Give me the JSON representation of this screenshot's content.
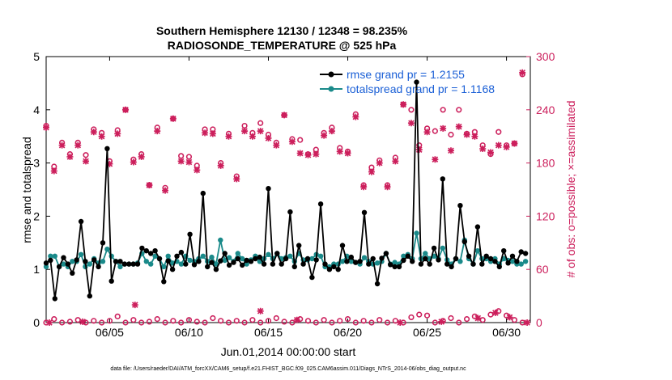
{
  "chart_data": {
    "type": "line",
    "title_line1": "Southern Hemisphere 12130 / 12348 = 98.235%",
    "title_line2": "RADIOSONDE_TEMPERATURE @ 525 hPa",
    "ylabel_left": "rmse and totalspread",
    "ylabel_right": "# of obs: o=possible; ×=assimilated",
    "xlabel": "Jun.01,2014 00:00:00 start",
    "footer": "data file: /Users/raeder/DAI/ATM_forcXX/CAM6_setup/f.e21.FHIST_BGC.f09_025.CAM6assim.011/Diags_NTrS_2014-06/obs_diag_output.nc",
    "xlim": [
      1,
      31.5
    ],
    "ylim_left": [
      0,
      5
    ],
    "ylim_right": [
      0,
      300
    ],
    "yticks_left": [
      0,
      1,
      2,
      3,
      4,
      5
    ],
    "yticks_right": [
      0,
      60,
      120,
      180,
      240,
      300
    ],
    "xticks": [
      {
        "day": 5,
        "label": "06/05"
      },
      {
        "day": 10,
        "label": "06/10"
      },
      {
        "day": 15,
        "label": "06/15"
      },
      {
        "day": 20,
        "label": "06/20"
      },
      {
        "day": 25,
        "label": "06/25"
      },
      {
        "day": 30,
        "label": "06/30"
      }
    ],
    "legend": [
      {
        "name": "rmse grand pr = 1.2155",
        "color": "#000000"
      },
      {
        "name": "totalspread grand pr = 1.1168",
        "color": "#1a8a8a"
      }
    ],
    "colors": {
      "rmse": "#000000",
      "spread": "#1a8a8a",
      "obs": "#cc1f5c",
      "label_left": "#000000",
      "label_right": "#cc1f5c",
      "legend_text": "#1a5fd6"
    },
    "series": [
      {
        "name": "rmse",
        "values": [
          1.12,
          1.17,
          0.45,
          1.05,
          1.22,
          1.1,
          0.93,
          1.18,
          1.9,
          1.15,
          0.5,
          1.18,
          1.05,
          1.5,
          3.27,
          0.78,
          1.15,
          1.15,
          1.1,
          1.1,
          1.1,
          1.1,
          1.4,
          1.35,
          1.3,
          1.35,
          1.2,
          0.77,
          1.16,
          1.0,
          1.25,
          1.32,
          1.1,
          1.66,
          1.09,
          1.15,
          2.43,
          1.05,
          1.13,
          1.0,
          1.16,
          1.3,
          1.08,
          1.13,
          1.2,
          1.08,
          1.17,
          1.15,
          1.2,
          1.23,
          1.1,
          2.52,
          1.1,
          1.3,
          1.1,
          1.2,
          2.08,
          1.05,
          1.45,
          1.1,
          1.2,
          0.85,
          1.18,
          2.23,
          1.1,
          1.0,
          1.05,
          1.0,
          1.45,
          1.15,
          1.23,
          1.13,
          1.15,
          2.07,
          1.1,
          1.2,
          0.73,
          1.21,
          1.3,
          1.09,
          1.05,
          1.05,
          1.17,
          1.25,
          1.15,
          4.52,
          1.1,
          1.2,
          1.1,
          1.4,
          1.18,
          2.7,
          1.1,
          1.05,
          1.2,
          2.2,
          1.52,
          1.25,
          1.1,
          1.8,
          1.1,
          1.25,
          1.2,
          1.15,
          1.05,
          1.35,
          1.12,
          1.25,
          1.15,
          1.33,
          1.3
        ],
        "spread": [
          1.05,
          1.25,
          1.25,
          1.05,
          1.1,
          1.05,
          1.15,
          1.15,
          1.28,
          1.05,
          1.1,
          1.2,
          1.12,
          1.15,
          1.38,
          1.25,
          1.15,
          1.05,
          1.1,
          1.1,
          1.1,
          1.12,
          1.3,
          1.15,
          1.1,
          1.25,
          1.2,
          1.05,
          1.25,
          1.12,
          1.15,
          1.1,
          1.25,
          1.17,
          1.15,
          1.2,
          1.25,
          1.15,
          1.23,
          1.1,
          1.55,
          1.17,
          1.22,
          1.15,
          1.3,
          1.2,
          1.1,
          1.18,
          1.25,
          1.15,
          1.2,
          1.28,
          1.2,
          1.3,
          1.2,
          1.22,
          1.25,
          1.15,
          1.3,
          1.18,
          1.18,
          1.2,
          1.28,
          1.25,
          1.05,
          1.05,
          1.1,
          1.1,
          1.15,
          1.25,
          1.15,
          1.13,
          1.1,
          1.22,
          1.15,
          1.1,
          1.12,
          1.15,
          1.3,
          1.1,
          1.13,
          1.1,
          1.25,
          1.28,
          1.2,
          1.68,
          1.2,
          1.3,
          1.2,
          1.25,
          1.2,
          1.4,
          1.18,
          1.1,
          1.2,
          1.15,
          1.55,
          1.2,
          1.1,
          1.35,
          1.2,
          1.2,
          1.15,
          1.2,
          1.1,
          1.2,
          1.17,
          1.15,
          1.1,
          1.1,
          1.15
        ]
      }
    ],
    "obs_possible": [
      {
        "day": 1.0,
        "n": 222
      },
      {
        "day": 1.5,
        "n": 176
      },
      {
        "day": 2.0,
        "n": 203
      },
      {
        "day": 2.5,
        "n": 190
      },
      {
        "day": 3.0,
        "n": 203
      },
      {
        "day": 3.5,
        "n": 189
      },
      {
        "day": 4.0,
        "n": 218
      },
      {
        "day": 4.5,
        "n": 214
      },
      {
        "day": 5.0,
        "n": 182
      },
      {
        "day": 5.5,
        "n": 217
      },
      {
        "day": 6.0,
        "n": 240
      },
      {
        "day": 6.5,
        "n": 184
      },
      {
        "day": 7.0,
        "n": 190
      },
      {
        "day": 7.5,
        "n": 155
      },
      {
        "day": 8.0,
        "n": 220
      },
      {
        "day": 8.5,
        "n": 152
      },
      {
        "day": 9.0,
        "n": 230
      },
      {
        "day": 9.5,
        "n": 188
      },
      {
        "day": 10.0,
        "n": 187
      },
      {
        "day": 10.5,
        "n": 177
      },
      {
        "day": 11.0,
        "n": 218
      },
      {
        "day": 11.5,
        "n": 218
      },
      {
        "day": 12.0,
        "n": 180
      },
      {
        "day": 12.5,
        "n": 213
      },
      {
        "day": 13.0,
        "n": 165
      },
      {
        "day": 13.5,
        "n": 222
      },
      {
        "day": 14.0,
        "n": 214
      },
      {
        "day": 14.5,
        "n": 225
      },
      {
        "day": 15.0,
        "n": 212
      },
      {
        "day": 15.5,
        "n": 203
      },
      {
        "day": 16.0,
        "n": 234
      },
      {
        "day": 16.5,
        "n": 207
      },
      {
        "day": 17.0,
        "n": 206
      },
      {
        "day": 17.5,
        "n": 190
      },
      {
        "day": 18.0,
        "n": 195
      },
      {
        "day": 18.5,
        "n": 214
      },
      {
        "day": 19.0,
        "n": 220
      },
      {
        "day": 19.5,
        "n": 197
      },
      {
        "day": 20.0,
        "n": 193
      },
      {
        "day": 20.5,
        "n": 235
      },
      {
        "day": 21.0,
        "n": 155
      },
      {
        "day": 21.5,
        "n": 175
      },
      {
        "day": 22.0,
        "n": 183
      },
      {
        "day": 22.5,
        "n": 155
      },
      {
        "day": 23.0,
        "n": 186
      },
      {
        "day": 23.5,
        "n": 246
      },
      {
        "day": 24.0,
        "n": 240
      },
      {
        "day": 24.5,
        "n": 200
      },
      {
        "day": 25.0,
        "n": 219
      },
      {
        "day": 25.5,
        "n": 216
      },
      {
        "day": 26.0,
        "n": 240
      },
      {
        "day": 26.5,
        "n": 212
      },
      {
        "day": 27.0,
        "n": 240
      },
      {
        "day": 27.5,
        "n": 213
      },
      {
        "day": 28.0,
        "n": 215
      },
      {
        "day": 28.5,
        "n": 200
      },
      {
        "day": 29.0,
        "n": 190
      },
      {
        "day": 29.5,
        "n": 215
      },
      {
        "day": 30.0,
        "n": 200
      },
      {
        "day": 30.5,
        "n": 202
      },
      {
        "day": 31.0,
        "n": 280
      }
    ],
    "obs_assimilated": [
      {
        "day": 1.0,
        "n": 220
      },
      {
        "day": 1.5,
        "n": 171
      },
      {
        "day": 2.0,
        "n": 200
      },
      {
        "day": 2.5,
        "n": 187
      },
      {
        "day": 3.0,
        "n": 200
      },
      {
        "day": 3.5,
        "n": 182
      },
      {
        "day": 4.0,
        "n": 215
      },
      {
        "day": 4.5,
        "n": 210
      },
      {
        "day": 5.0,
        "n": 179
      },
      {
        "day": 5.5,
        "n": 213
      },
      {
        "day": 6.0,
        "n": 240
      },
      {
        "day": 6.5,
        "n": 181
      },
      {
        "day": 7.0,
        "n": 187
      },
      {
        "day": 7.5,
        "n": 155
      },
      {
        "day": 8.0,
        "n": 216
      },
      {
        "day": 8.5,
        "n": 149
      },
      {
        "day": 9.0,
        "n": 230
      },
      {
        "day": 9.5,
        "n": 182
      },
      {
        "day": 10.0,
        "n": 181
      },
      {
        "day": 10.5,
        "n": 172
      },
      {
        "day": 11.0,
        "n": 214
      },
      {
        "day": 11.5,
        "n": 213
      },
      {
        "day": 12.0,
        "n": 177
      },
      {
        "day": 12.5,
        "n": 210
      },
      {
        "day": 13.0,
        "n": 162
      },
      {
        "day": 13.5,
        "n": 216
      },
      {
        "day": 14.0,
        "n": 210
      },
      {
        "day": 14.5,
        "n": 216
      },
      {
        "day": 15.0,
        "n": 208
      },
      {
        "day": 15.5,
        "n": 200
      },
      {
        "day": 16.0,
        "n": 234
      },
      {
        "day": 16.5,
        "n": 204
      },
      {
        "day": 17.0,
        "n": 191
      },
      {
        "day": 17.5,
        "n": 189
      },
      {
        "day": 18.0,
        "n": 190
      },
      {
        "day": 18.5,
        "n": 211
      },
      {
        "day": 19.0,
        "n": 216
      },
      {
        "day": 19.5,
        "n": 193
      },
      {
        "day": 20.0,
        "n": 191
      },
      {
        "day": 20.5,
        "n": 232
      },
      {
        "day": 21.0,
        "n": 153
      },
      {
        "day": 21.5,
        "n": 170
      },
      {
        "day": 22.0,
        "n": 180
      },
      {
        "day": 22.5,
        "n": 153
      },
      {
        "day": 23.0,
        "n": 182
      },
      {
        "day": 23.5,
        "n": 246
      },
      {
        "day": 24.0,
        "n": 225
      },
      {
        "day": 24.5,
        "n": 195
      },
      {
        "day": 25.0,
        "n": 215
      },
      {
        "day": 25.5,
        "n": 184
      },
      {
        "day": 26.0,
        "n": 219
      },
      {
        "day": 26.5,
        "n": 194
      },
      {
        "day": 27.0,
        "n": 221
      },
      {
        "day": 27.5,
        "n": 212
      },
      {
        "day": 28.0,
        "n": 210
      },
      {
        "day": 28.5,
        "n": 196
      },
      {
        "day": 29.0,
        "n": 192
      },
      {
        "day": 29.5,
        "n": 200
      },
      {
        "day": 30.0,
        "n": 198
      },
      {
        "day": 30.5,
        "n": 202
      },
      {
        "day": 31.0,
        "n": 282
      }
    ],
    "obs_low_possible": [
      {
        "day": 1.0,
        "n": 0
      },
      {
        "day": 1.5,
        "n": 4
      },
      {
        "day": 2.0,
        "n": 0
      },
      {
        "day": 2.5,
        "n": 1
      },
      {
        "day": 3.0,
        "n": 3
      },
      {
        "day": 3.5,
        "n": 0
      },
      {
        "day": 4.0,
        "n": 2
      },
      {
        "day": 4.5,
        "n": 0
      },
      {
        "day": 5.0,
        "n": 2
      },
      {
        "day": 5.5,
        "n": 7
      },
      {
        "day": 6.0,
        "n": 0
      },
      {
        "day": 6.5,
        "n": 3
      },
      {
        "day": 7.0,
        "n": 0
      },
      {
        "day": 7.5,
        "n": 1
      },
      {
        "day": 8.0,
        "n": 4
      },
      {
        "day": 8.5,
        "n": 0
      },
      {
        "day": 9.0,
        "n": 2
      },
      {
        "day": 9.5,
        "n": 0
      },
      {
        "day": 10.0,
        "n": 3
      },
      {
        "day": 10.5,
        "n": 1
      },
      {
        "day": 11.0,
        "n": 0
      },
      {
        "day": 11.5,
        "n": 5
      },
      {
        "day": 12.0,
        "n": 2
      },
      {
        "day": 12.5,
        "n": 0
      },
      {
        "day": 13.0,
        "n": 2
      },
      {
        "day": 13.5,
        "n": 0
      },
      {
        "day": 14.0,
        "n": 3
      },
      {
        "day": 14.5,
        "n": 0
      },
      {
        "day": 15.0,
        "n": 2
      },
      {
        "day": 15.5,
        "n": 5
      },
      {
        "day": 16.0,
        "n": 1
      },
      {
        "day": 16.5,
        "n": 0
      },
      {
        "day": 17.0,
        "n": 4
      },
      {
        "day": 17.5,
        "n": 2
      },
      {
        "day": 18.0,
        "n": 0
      },
      {
        "day": 18.5,
        "n": 3
      },
      {
        "day": 19.0,
        "n": 0
      },
      {
        "day": 19.5,
        "n": 2
      },
      {
        "day": 20.0,
        "n": 4
      },
      {
        "day": 20.5,
        "n": 0
      },
      {
        "day": 21.0,
        "n": 2
      },
      {
        "day": 21.5,
        "n": 0
      },
      {
        "day": 22.0,
        "n": 3
      },
      {
        "day": 22.5,
        "n": 0
      },
      {
        "day": 23.0,
        "n": 2
      },
      {
        "day": 23.5,
        "n": 0
      },
      {
        "day": 24.0,
        "n": 6
      },
      {
        "day": 24.5,
        "n": 9
      },
      {
        "day": 25.0,
        "n": 8
      },
      {
        "day": 25.5,
        "n": 0
      },
      {
        "day": 26.0,
        "n": 2
      },
      {
        "day": 26.5,
        "n": 5
      },
      {
        "day": 27.0,
        "n": 0
      },
      {
        "day": 27.5,
        "n": 4
      },
      {
        "day": 28.0,
        "n": 7
      },
      {
        "day": 28.5,
        "n": 3
      },
      {
        "day": 29.0,
        "n": 9
      },
      {
        "day": 29.5,
        "n": 13
      },
      {
        "day": 30.0,
        "n": 8
      },
      {
        "day": 30.5,
        "n": 3
      },
      {
        "day": 31.0,
        "n": 0
      }
    ],
    "obs_low_assimilated": [
      {
        "day": 1.2,
        "n": 0
      },
      {
        "day": 3.3,
        "n": 1
      },
      {
        "day": 6.6,
        "n": 20
      },
      {
        "day": 14.5,
        "n": 13
      },
      {
        "day": 16.8,
        "n": 3
      },
      {
        "day": 23.3,
        "n": 0
      },
      {
        "day": 25.9,
        "n": 1
      },
      {
        "day": 28.2,
        "n": 5
      },
      {
        "day": 29.3,
        "n": 11
      },
      {
        "day": 30.2,
        "n": 6
      },
      {
        "day": 31.3,
        "n": 0
      }
    ]
  }
}
